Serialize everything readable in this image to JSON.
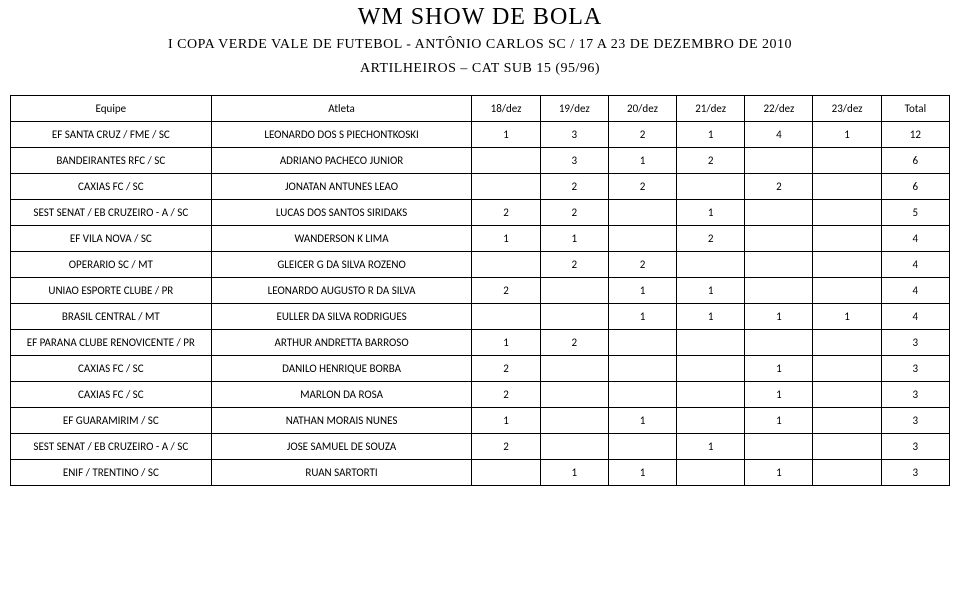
{
  "header": {
    "title1": "WM SHOW DE BOLA",
    "title2": "I COPA VERDE VALE DE FUTEBOL - ANTÔNIO CARLOS SC / 17 A 23 DE DEZEMBRO DE 2010",
    "title3": "ARTILHEIROS – CAT SUB 15 (95/96)"
  },
  "table": {
    "columns": [
      "Equipe",
      "Atleta",
      "18/dez",
      "19/dez",
      "20/dez",
      "21/dez",
      "22/dez",
      "23/dez",
      "Total"
    ],
    "rows": [
      {
        "team": "EF SANTA CRUZ / FME / SC",
        "atleta": "LEONARDO DOS S PIECHONTKOSKI",
        "d": [
          "1",
          "3",
          "2",
          "1",
          "4",
          "1",
          "12"
        ]
      },
      {
        "team": "BANDEIRANTES RFC / SC",
        "atleta": "ADRIANO PACHECO JUNIOR",
        "d": [
          "",
          "3",
          "1",
          "2",
          "",
          "",
          "6"
        ]
      },
      {
        "team": "CAXIAS FC / SC",
        "atleta": "JONATAN ANTUNES LEAO",
        "d": [
          "",
          "2",
          "2",
          "",
          "2",
          "",
          "6"
        ]
      },
      {
        "team": "SEST SENAT / EB CRUZEIRO - A / SC",
        "atleta": "LUCAS DOS SANTOS SIRIDAKS",
        "d": [
          "2",
          "2",
          "",
          "1",
          "",
          "",
          "5"
        ]
      },
      {
        "team": "EF VILA NOVA / SC",
        "atleta": "WANDERSON K LIMA",
        "d": [
          "1",
          "1",
          "",
          "2",
          "",
          "",
          "4"
        ]
      },
      {
        "team": "OPERARIO SC / MT",
        "atleta": "GLEICER G DA SILVA ROZENO",
        "d": [
          "",
          "2",
          "2",
          "",
          "",
          "",
          "4"
        ]
      },
      {
        "team": "UNIAO ESPORTE CLUBE / PR",
        "atleta": "LEONARDO AUGUSTO R DA SILVA",
        "d": [
          "2",
          "",
          "1",
          "1",
          "",
          "",
          "4"
        ]
      },
      {
        "team": "BRASIL CENTRAL / MT",
        "atleta": "EULLER DA SILVA RODRIGUES",
        "d": [
          "",
          "",
          "1",
          "1",
          "1",
          "1",
          "4"
        ]
      },
      {
        "team": "EF PARANA CLUBE RENOVICENTE / PR",
        "atleta": "ARTHUR ANDRETTA BARROSO",
        "d": [
          "1",
          "2",
          "",
          "",
          "",
          "",
          "3"
        ]
      },
      {
        "team": "CAXIAS FC / SC",
        "atleta": "DANILO HENRIQUE BORBA",
        "d": [
          "2",
          "",
          "",
          "",
          "1",
          "",
          "3"
        ]
      },
      {
        "team": "CAXIAS FC / SC",
        "atleta": "MARLON DA ROSA",
        "d": [
          "2",
          "",
          "",
          "",
          "1",
          "",
          "3"
        ]
      },
      {
        "team": "EF GUARAMIRIM / SC",
        "atleta": "NATHAN MORAIS NUNES",
        "d": [
          "1",
          "",
          "1",
          "",
          "1",
          "",
          "3"
        ]
      },
      {
        "team": "SEST SENAT / EB CRUZEIRO - A / SC",
        "atleta": "JOSE SAMUEL DE SOUZA",
        "d": [
          "2",
          "",
          "",
          "1",
          "",
          "",
          "3"
        ]
      },
      {
        "team": "ENIF / TRENTINO / SC",
        "atleta": "RUAN SARTORTI",
        "d": [
          "",
          "1",
          "1",
          "",
          "1",
          "",
          "3"
        ]
      }
    ]
  },
  "style": {
    "page_bg": "#ffffff",
    "text_color": "#000000",
    "border_color": "#000000",
    "title_font": "Trajan Pro, Times New Roman, serif",
    "body_font": "Calibri, Arial, sans-serif",
    "title1_size_pt": 18,
    "title2_size_pt": 11,
    "cell_size_pt": 8
  }
}
